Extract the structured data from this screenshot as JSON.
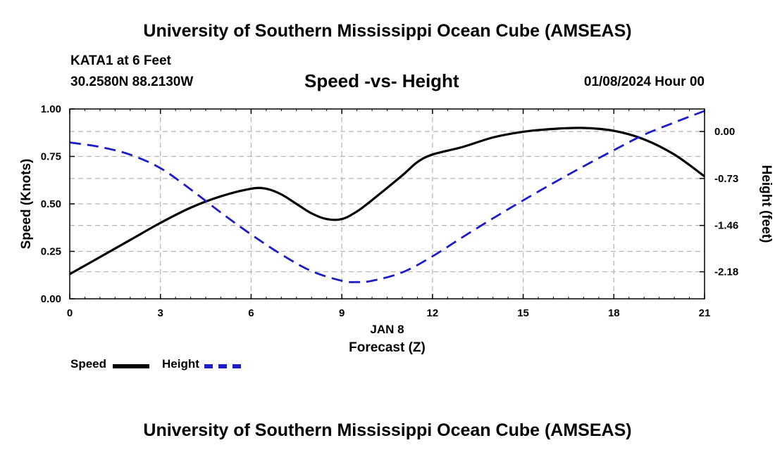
{
  "header": {
    "title": "University of Southern Mississippi Ocean Cube (AMSEAS)",
    "station": "KATA1 at 6 Feet",
    "coords": "30.2580N  88.2130W",
    "chart_title": "Speed -vs- Height",
    "date_hour": "01/08/2024 Hour 00"
  },
  "footer": {
    "title": "University of Southern Mississippi Ocean Cube (AMSEAS)"
  },
  "legend": {
    "speed": "Speed",
    "height": "Height"
  },
  "colors": {
    "speed": "#000000",
    "height": "#1c1cc8",
    "grid": "#b4b4b4"
  },
  "chart_data": {
    "type": "line",
    "title": "Speed -vs- Height",
    "xlabel": "Forecast (Z)",
    "xsublabel": "JAN 8",
    "ylabel": "Speed (Knots)",
    "y2label": "Height (feet)",
    "xlim": [
      0,
      21
    ],
    "ylim": [
      0,
      1
    ],
    "y2lim": [
      -2.6,
      0.35
    ],
    "x_ticks": [
      0,
      3,
      6,
      9,
      12,
      15,
      18,
      21
    ],
    "x_tick_labels": [
      "0",
      "3",
      "6",
      "9",
      "12",
      "15",
      "18",
      "21"
    ],
    "y_ticks": [
      0,
      0.25,
      0.5,
      0.75,
      1.0
    ],
    "y_tick_labels": [
      "0.00",
      "0.25",
      "0.50",
      "0.75",
      "1.00"
    ],
    "y2_ticks": [
      0.0,
      -0.73,
      -1.46,
      -2.18
    ],
    "y2_tick_labels": [
      "0.00",
      "-0.73",
      "-1.46",
      "-2.18"
    ],
    "grid": true,
    "series": [
      {
        "name": "Speed",
        "axis": "left",
        "style": "solid",
        "x": [
          0,
          1,
          2,
          3,
          4,
          5,
          6,
          6.5,
          7,
          7.5,
          8,
          8.5,
          9,
          9.5,
          10,
          11,
          11.5,
          12,
          13,
          14,
          15,
          16,
          17,
          18,
          19,
          20,
          21
        ],
        "values": [
          0.13,
          0.22,
          0.31,
          0.4,
          0.48,
          0.54,
          0.58,
          0.58,
          0.55,
          0.5,
          0.45,
          0.42,
          0.42,
          0.46,
          0.52,
          0.65,
          0.72,
          0.76,
          0.8,
          0.85,
          0.88,
          0.895,
          0.9,
          0.885,
          0.84,
          0.76,
          0.645
        ]
      },
      {
        "name": "Height",
        "axis": "right",
        "style": "dashed",
        "x": [
          0,
          1,
          2,
          3,
          4,
          5,
          6,
          7,
          8,
          9,
          9.5,
          10,
          11,
          12,
          13,
          14,
          15,
          16,
          17,
          18,
          19,
          20,
          21
        ],
        "values": [
          -0.17,
          -0.24,
          -0.36,
          -0.57,
          -0.9,
          -1.26,
          -1.6,
          -1.91,
          -2.17,
          -2.32,
          -2.34,
          -2.32,
          -2.19,
          -1.94,
          -1.64,
          -1.35,
          -1.07,
          -0.8,
          -0.54,
          -0.29,
          -0.05,
          0.14,
          0.32
        ]
      }
    ]
  }
}
